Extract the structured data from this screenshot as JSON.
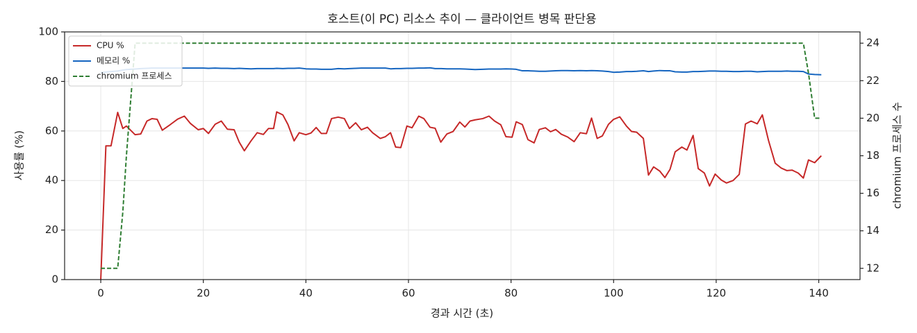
{
  "chart_data": {
    "type": "line",
    "title": "호스트(이 PC) 리소스 추이 — 클라이언트 병목 판단용",
    "xlabel": "경과 시간 (초)",
    "ylabel": "사용률 (%)",
    "y2label": "chromium 프로세스 수",
    "grid": true,
    "legend": "upper left",
    "xlim": [
      -7.05,
      148.05
    ],
    "xticks": [
      0,
      20,
      40,
      60,
      80,
      100,
      120,
      140
    ],
    "ylim": [
      0,
      100
    ],
    "yticks": [
      0,
      20,
      40,
      60,
      80,
      100
    ],
    "y2lim": [
      11.4,
      24.6
    ],
    "y2ticks": [
      12,
      14,
      16,
      18,
      20,
      22,
      24
    ],
    "x": [
      0,
      1,
      2,
      3.3,
      4.3,
      5,
      6.7,
      7.8,
      9,
      10,
      11,
      12,
      13.5,
      15,
      16.3,
      17.5,
      19,
      20,
      21,
      22.3,
      23.5,
      24.7,
      26,
      27,
      28,
      29.3,
      30.5,
      31.7,
      32.7,
      33.7,
      34.3,
      35.5,
      36.5,
      37.7,
      38.7,
      40,
      41,
      42,
      43,
      44,
      45,
      46.3,
      47.5,
      48.5,
      49.7,
      50.8,
      52,
      53,
      54.5,
      55.5,
      56.5,
      57.5,
      58.5,
      59.7,
      60.7,
      62,
      63,
      64.2,
      65.2,
      66.3,
      67.5,
      68.7,
      70,
      71,
      72,
      73,
      74.5,
      75.7,
      76.8,
      78,
      79,
      80.2,
      81,
      82.2,
      83.3,
      84.5,
      85.5,
      86.7,
      87.7,
      88.7,
      89.8,
      91,
      92.3,
      93.5,
      94.7,
      95.7,
      96.8,
      97.8,
      99,
      100,
      101.2,
      102.5,
      103.5,
      104.5,
      105.8,
      106.8,
      107.8,
      109,
      110,
      111,
      112,
      113.3,
      114.3,
      115.5,
      116.5,
      117.7,
      118.7,
      119.8,
      121,
      122,
      123.3,
      124.5,
      125.7,
      126.8,
      128,
      129,
      130.2,
      131.5,
      132.7,
      133.8,
      134.8,
      136,
      137,
      138,
      139.2,
      140.5
    ],
    "series": [
      {
        "name": "CPU %",
        "color": "#c62828",
        "dash": false,
        "axis": "y",
        "values": [
          0,
          54,
          54,
          67.5,
          61,
          62,
          58.5,
          58.8,
          64,
          65,
          64.7,
          60.3,
          62.5,
          64.8,
          66,
          63,
          60.5,
          61,
          59,
          62.7,
          64,
          60.7,
          60.5,
          55.5,
          52,
          56,
          59.3,
          58.6,
          61,
          61,
          67.7,
          66.5,
          62.6,
          56,
          59.3,
          58.5,
          59.2,
          61.4,
          59,
          59,
          65,
          65.6,
          65,
          61,
          63.3,
          60.5,
          61.5,
          59.3,
          57,
          57.7,
          59.3,
          53.5,
          53.3,
          62,
          61.3,
          66,
          65,
          61.5,
          61.1,
          55.5,
          58.8,
          59.8,
          63.6,
          61.6,
          64,
          64.5,
          65,
          66,
          64,
          62.5,
          57.7,
          57.5,
          63.7,
          62.6,
          56.5,
          55.2,
          60.6,
          61.3,
          59.7,
          60.6,
          58.7,
          57.6,
          55.7,
          59.3,
          58.9,
          65.2,
          57,
          58,
          62.7,
          64.7,
          65.7,
          62,
          59.8,
          59.5,
          57,
          42.2,
          45.5,
          43.8,
          41.2,
          44.5,
          51.6,
          53.5,
          52.3,
          58.2,
          44.8,
          43,
          37.8,
          42.6,
          40.2,
          39,
          40,
          42.5,
          62.8,
          64,
          62.9,
          66.5,
          56.2,
          47,
          45,
          44,
          44.2,
          43,
          41,
          48.3,
          47.2,
          50
        ]
      },
      {
        "name": "메모리 %",
        "color": "#1565c0",
        "dash": false,
        "axis": "y",
        "values": [
          83.5,
          83.8,
          84,
          84.2,
          84.6,
          84.8,
          85,
          85.2,
          85.3,
          85.4,
          85.4,
          85.4,
          85.4,
          85.4,
          85.4,
          85.4,
          85.4,
          85.4,
          85.3,
          85.4,
          85.3,
          85.3,
          85.2,
          85.3,
          85.2,
          85.1,
          85.2,
          85.2,
          85.2,
          85.2,
          85.3,
          85.2,
          85.3,
          85.3,
          85.4,
          85.1,
          85,
          85,
          84.9,
          84.9,
          84.9,
          85.2,
          85.1,
          85.2,
          85.3,
          85.4,
          85.4,
          85.4,
          85.4,
          85.4,
          85.1,
          85.2,
          85.2,
          85.3,
          85.3,
          85.4,
          85.4,
          85.5,
          85.2,
          85.2,
          85.1,
          85.1,
          85.1,
          85,
          84.9,
          84.8,
          84.9,
          85,
          85,
          85,
          85.1,
          85,
          84.9,
          84.3,
          84.3,
          84.2,
          84.1,
          84.1,
          84.2,
          84.3,
          84.4,
          84.4,
          84.3,
          84.4,
          84.3,
          84.4,
          84.3,
          84.2,
          84,
          83.7,
          83.8,
          84,
          84,
          84.1,
          84.3,
          84,
          84.2,
          84.4,
          84.3,
          84.3,
          83.9,
          83.8,
          83.8,
          84,
          84,
          84.1,
          84.2,
          84.2,
          84.1,
          84.1,
          84,
          84,
          84.1,
          84.1,
          83.9,
          84,
          84.1,
          84.1,
          84.1,
          84.2,
          84.1,
          84.1,
          84,
          83,
          82.8,
          82.7
        ]
      },
      {
        "name": "chromium 프로세스",
        "color": "#2e7d32",
        "dash": true,
        "axis": "y2",
        "values": [
          12,
          12,
          12,
          12,
          15,
          18,
          24,
          24,
          24,
          24,
          24,
          24,
          24,
          24,
          24,
          24,
          24,
          24,
          24,
          24,
          24,
          24,
          24,
          24,
          24,
          24,
          24,
          24,
          24,
          24,
          24,
          24,
          24,
          24,
          24,
          24,
          24,
          24,
          24,
          24,
          24,
          24,
          24,
          24,
          24,
          24,
          24,
          24,
          24,
          24,
          24,
          24,
          24,
          24,
          24,
          24,
          24,
          24,
          24,
          24,
          24,
          24,
          24,
          24,
          24,
          24,
          24,
          24,
          24,
          24,
          24,
          24,
          24,
          24,
          24,
          24,
          24,
          24,
          24,
          24,
          24,
          24,
          24,
          24,
          24,
          24,
          24,
          24,
          24,
          24,
          24,
          24,
          24,
          24,
          24,
          24,
          24,
          24,
          24,
          24,
          24,
          24,
          24,
          24,
          24,
          24,
          24,
          24,
          24,
          24,
          24,
          24,
          24,
          24,
          24,
          24,
          24,
          24,
          24,
          24,
          24,
          24,
          24,
          22.4,
          20,
          20
        ]
      }
    ]
  }
}
